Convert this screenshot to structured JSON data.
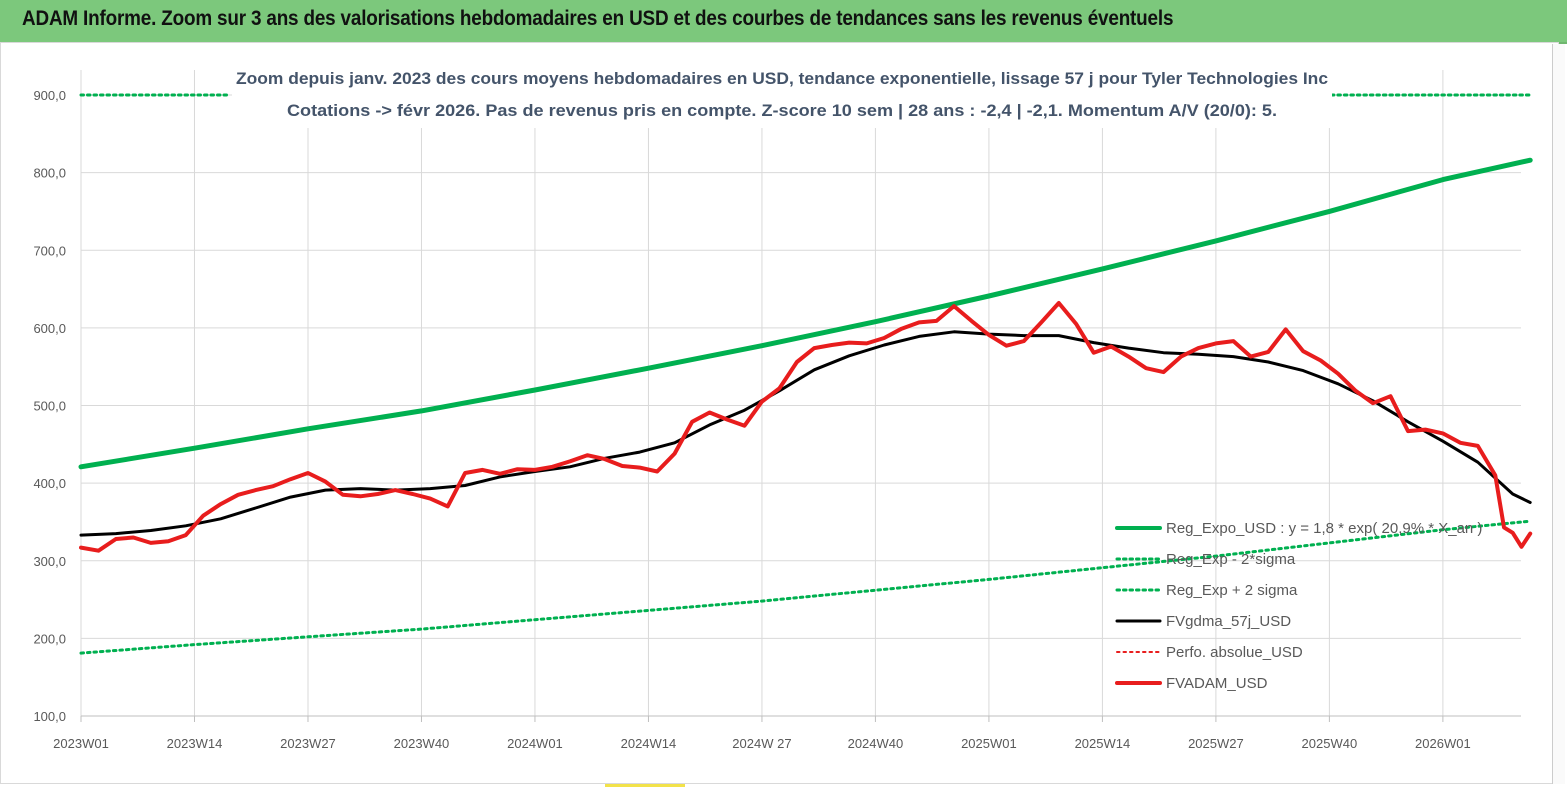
{
  "header": {
    "title": "ADAM Informe. Zoom sur 3 ans des valorisations hebdomadaires en USD et des courbes de tendances sans les revenus éventuels"
  },
  "chart_data": {
    "type": "line",
    "title_line1": "Zoom depuis janv. 2023 des cours moyens hebdomadaires en USD, tendance exponentielle, lissage 57 j pour Tyler Technologies Inc",
    "title_line2": "Cotations -> févr 2026.  Pas de revenus pris en compte. Z-score 10 sem  | 28 ans : -2,4  | -2,1. Momentum A/V (20/0): 5.",
    "xlabel": "",
    "ylabel": "",
    "ylim": [
      100,
      900
    ],
    "y_ticks": [
      "900,0",
      "800,0",
      "700,0",
      "600,0",
      "500,0",
      "400,0",
      "300,0",
      "200,0",
      "100,0"
    ],
    "y_tick_values": [
      900,
      800,
      700,
      600,
      500,
      400,
      300,
      200,
      100
    ],
    "xlim": [
      0,
      162
    ],
    "x_ticks": [
      {
        "label": "2023W01",
        "week": 0
      },
      {
        "label": "2023W14",
        "week": 13
      },
      {
        "label": "2023W27",
        "week": 26
      },
      {
        "label": "2023W40",
        "week": 39
      },
      {
        "label": "2024W01",
        "week": 52
      },
      {
        "label": "2024W14",
        "week": 65
      },
      {
        "label": "2024W 27",
        "week": 78
      },
      {
        "label": "2024W40",
        "week": 91
      },
      {
        "label": "2025W01",
        "week": 104
      },
      {
        "label": "2025W14",
        "week": 117
      },
      {
        "label": "2025W27",
        "week": 130
      },
      {
        "label": "2025W40",
        "week": 143
      },
      {
        "label": "2026W01",
        "week": 156
      }
    ],
    "grid": true,
    "legend_position": "bottom-right",
    "series": [
      {
        "name": "Reg_Expo_USD : y = 1,8 * exp( 20,9% * X_an )",
        "style": "solid",
        "color": "#00b050",
        "width": 5,
        "points": [
          [
            0,
            421
          ],
          [
            13,
            445
          ],
          [
            26,
            470
          ],
          [
            39,
            493
          ],
          [
            52,
            520
          ],
          [
            65,
            548
          ],
          [
            78,
            577
          ],
          [
            91,
            608
          ],
          [
            104,
            641
          ],
          [
            117,
            676
          ],
          [
            130,
            712
          ],
          [
            143,
            750
          ],
          [
            156,
            791
          ],
          [
            166,
            816
          ]
        ]
      },
      {
        "name": "Reg_Exp - 2*sigma",
        "style": "dotted",
        "color": "#00b050",
        "width": 3,
        "points": [
          [
            0,
            181
          ],
          [
            13,
            192
          ],
          [
            26,
            202
          ],
          [
            39,
            212
          ],
          [
            52,
            224
          ],
          [
            65,
            236
          ],
          [
            78,
            248
          ],
          [
            91,
            262
          ],
          [
            104,
            276
          ],
          [
            117,
            291
          ],
          [
            130,
            306
          ],
          [
            143,
            323
          ],
          [
            156,
            340
          ],
          [
            166,
            351
          ]
        ]
      },
      {
        "name": "Reg_Exp + 2 sigma",
        "style": "dotted",
        "color": "#00b050",
        "width": 3,
        "points": [
          [
            0,
            900
          ],
          [
            17,
            900
          ]
        ],
        "points2": [
          [
            141,
            900
          ],
          [
            166,
            900
          ]
        ]
      },
      {
        "name": "FVgdma_57j_USD",
        "style": "solid",
        "color": "#000000",
        "width": 3,
        "points": [
          [
            0,
            333
          ],
          [
            4,
            335
          ],
          [
            8,
            339
          ],
          [
            12,
            345
          ],
          [
            16,
            354
          ],
          [
            20,
            368
          ],
          [
            24,
            382
          ],
          [
            28,
            391
          ],
          [
            32,
            393
          ],
          [
            36,
            391
          ],
          [
            40,
            393
          ],
          [
            44,
            397
          ],
          [
            48,
            408
          ],
          [
            52,
            415
          ],
          [
            56,
            421
          ],
          [
            60,
            432
          ],
          [
            64,
            440
          ],
          [
            68,
            452
          ],
          [
            72,
            475
          ],
          [
            76,
            494
          ],
          [
            80,
            519
          ],
          [
            84,
            546
          ],
          [
            88,
            564
          ],
          [
            92,
            578
          ],
          [
            96,
            589
          ],
          [
            100,
            595
          ],
          [
            104,
            592
          ],
          [
            108,
            590
          ],
          [
            112,
            590
          ],
          [
            116,
            581
          ],
          [
            120,
            574
          ],
          [
            124,
            568
          ],
          [
            128,
            566
          ],
          [
            132,
            563
          ],
          [
            136,
            556
          ],
          [
            140,
            545
          ],
          [
            144,
            528
          ],
          [
            148,
            506
          ],
          [
            152,
            479
          ],
          [
            156,
            454
          ],
          [
            160,
            427
          ],
          [
            164,
            386
          ],
          [
            166,
            375
          ]
        ]
      },
      {
        "name": "Perfo. absolue_USD",
        "style": "dotted",
        "color": "#e81d1d",
        "width": 2,
        "points": []
      },
      {
        "name": "FVADAM_USD",
        "style": "solid",
        "color": "#e81d1d",
        "width": 4,
        "points": [
          [
            0,
            317
          ],
          [
            2,
            313
          ],
          [
            4,
            328
          ],
          [
            6,
            330
          ],
          [
            8,
            323
          ],
          [
            10,
            325
          ],
          [
            12,
            333
          ],
          [
            14,
            358
          ],
          [
            16,
            373
          ],
          [
            18,
            385
          ],
          [
            20,
            391
          ],
          [
            22,
            396
          ],
          [
            24,
            405
          ],
          [
            26,
            413
          ],
          [
            28,
            402
          ],
          [
            30,
            385
          ],
          [
            32,
            383
          ],
          [
            34,
            386
          ],
          [
            36,
            391
          ],
          [
            38,
            386
          ],
          [
            40,
            380
          ],
          [
            42,
            370
          ],
          [
            44,
            413
          ],
          [
            46,
            417
          ],
          [
            48,
            412
          ],
          [
            50,
            418
          ],
          [
            52,
            417
          ],
          [
            54,
            421
          ],
          [
            56,
            428
          ],
          [
            58,
            436
          ],
          [
            60,
            431
          ],
          [
            62,
            422
          ],
          [
            64,
            420
          ],
          [
            66,
            415
          ],
          [
            68,
            438
          ],
          [
            70,
            479
          ],
          [
            72,
            491
          ],
          [
            74,
            482
          ],
          [
            76,
            474
          ],
          [
            78,
            505
          ],
          [
            80,
            522
          ],
          [
            82,
            556
          ],
          [
            84,
            574
          ],
          [
            86,
            578
          ],
          [
            88,
            581
          ],
          [
            90,
            580
          ],
          [
            92,
            587
          ],
          [
            94,
            599
          ],
          [
            96,
            607
          ],
          [
            98,
            609
          ],
          [
            100,
            628
          ],
          [
            102,
            609
          ],
          [
            104,
            591
          ],
          [
            106,
            577
          ],
          [
            108,
            583
          ],
          [
            110,
            607
          ],
          [
            112,
            632
          ],
          [
            114,
            605
          ],
          [
            116,
            568
          ],
          [
            118,
            576
          ],
          [
            120,
            563
          ],
          [
            122,
            548
          ],
          [
            124,
            543
          ],
          [
            126,
            563
          ],
          [
            128,
            574
          ],
          [
            130,
            580
          ],
          [
            132,
            583
          ],
          [
            134,
            563
          ],
          [
            136,
            569
          ],
          [
            138,
            598
          ],
          [
            140,
            570
          ],
          [
            142,
            558
          ],
          [
            144,
            541
          ],
          [
            146,
            519
          ],
          [
            148,
            503
          ],
          [
            150,
            512
          ],
          [
            152,
            467
          ],
          [
            154,
            469
          ],
          [
            156,
            464
          ],
          [
            158,
            452
          ],
          [
            160,
            448
          ],
          [
            162,
            410
          ],
          [
            163,
            343
          ],
          [
            164,
            336
          ],
          [
            165,
            318
          ],
          [
            166,
            335
          ]
        ]
      }
    ]
  }
}
